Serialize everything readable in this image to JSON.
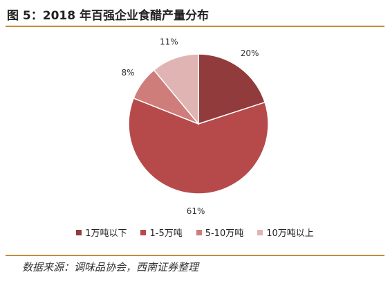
{
  "header": {
    "title": "图 5：2018 年百强企业食醋产量分布"
  },
  "footer": {
    "source": "数据来源：调味品协会，西南证券整理"
  },
  "colors": {
    "rule": "#c58a3f"
  },
  "chart_data": {
    "type": "pie",
    "title": "",
    "legend_position": "bottom",
    "slices": [
      {
        "label": "1万吨以下",
        "value": 20,
        "display": "20%",
        "color": "#923b3c"
      },
      {
        "label": "1-5万吨",
        "value": 61,
        "display": "61%",
        "color": "#b64a4a"
      },
      {
        "label": "5-10万吨",
        "value": 8,
        "display": "8%",
        "color": "#cf7d7b"
      },
      {
        "label": "10万吨以上",
        "value": 11,
        "display": "11%",
        "color": "#e0b4b2"
      }
    ]
  }
}
